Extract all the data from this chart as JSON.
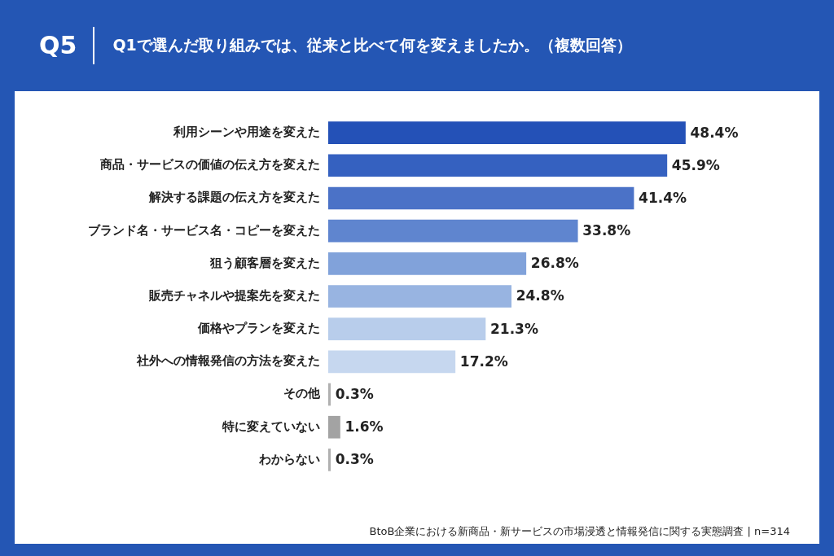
{
  "chart_data": {
    "type": "bar",
    "orientation": "horizontal",
    "title": "Q1で選んだ取り組みでは、従来と比べて何を変えましたか。（複数回答）",
    "categories": [
      "利用シーンや用途を変えた",
      "商品・サービスの価値の伝え方を変えた",
      "解決する課題の伝え方を変えた",
      "ブランド名・サービス名・コピーを変えた",
      "狙う顧客層を変えた",
      "販売チャネルや提案先を変えた",
      "価格やプランを変えた",
      "社外への情報発信の方法を変えた",
      "その他",
      "特に変えていない",
      "わからない"
    ],
    "values": [
      48.4,
      45.9,
      41.4,
      33.8,
      26.8,
      24.8,
      21.3,
      17.2,
      0.3,
      1.6,
      0.3
    ],
    "colors": [
      "#2451b7",
      "#3561c0",
      "#4b72c7",
      "#5f85cf",
      "#81a2da",
      "#98b4e1",
      "#b8cdeb",
      "#c6d7ef",
      "#b0b0b0",
      "#a3a3a3",
      "#b0b0b0"
    ],
    "value_labels": [
      "48.4%",
      "45.9%",
      "41.4%",
      "33.8%",
      "26.8%",
      "24.8%",
      "21.3%",
      "17.2%",
      "0.3%",
      "1.6%",
      "0.3%"
    ],
    "grid": false,
    "legend": false,
    "tick_labels": "y",
    "annotations": [
      "Q5",
      "BtoB企業における新商品・新サービスの市場浸透と情報発信に関する実態調査 | n=314"
    ]
  }
}
